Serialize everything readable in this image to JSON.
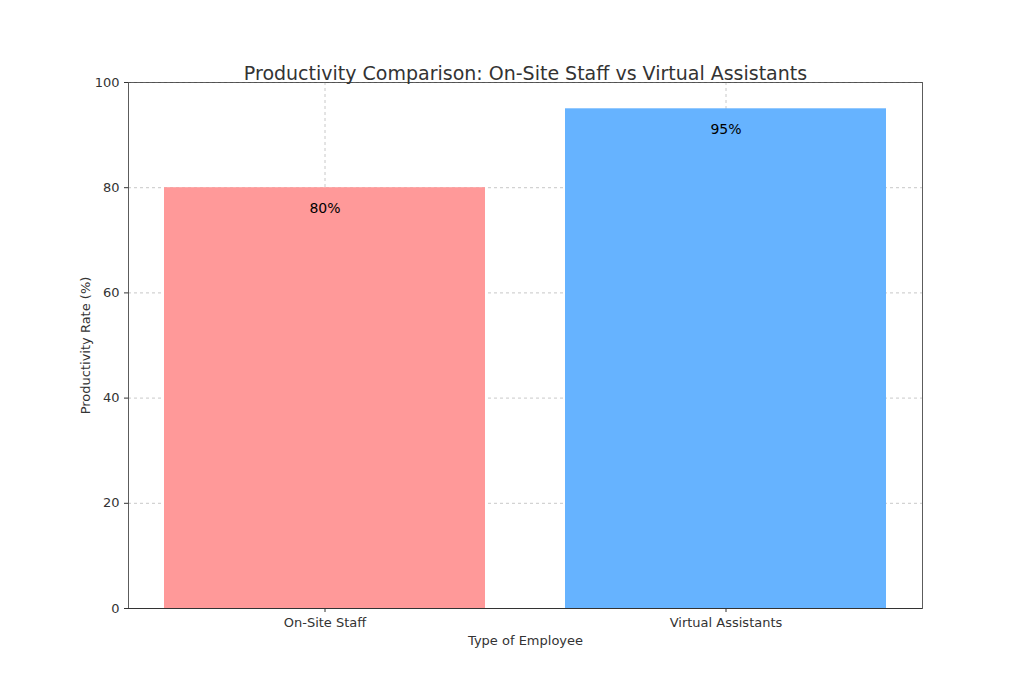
{
  "chart_data": {
    "type": "bar",
    "title": "Productivity Comparison: On-Site Staff vs Virtual Assistants",
    "x_label": "Type of Employee",
    "y_label": "Productivity Rate (%)",
    "categories": [
      "On-Site Staff",
      "Virtual Assistants"
    ],
    "values": [
      80,
      95
    ],
    "value_labels": [
      "80%",
      "95%"
    ],
    "colors": [
      "#ff9999",
      "#66b3ff"
    ],
    "ylim": [
      0,
      100
    ],
    "yticks": [
      0,
      20,
      40,
      60,
      80,
      100
    ],
    "grid": true,
    "data_labels": true
  }
}
